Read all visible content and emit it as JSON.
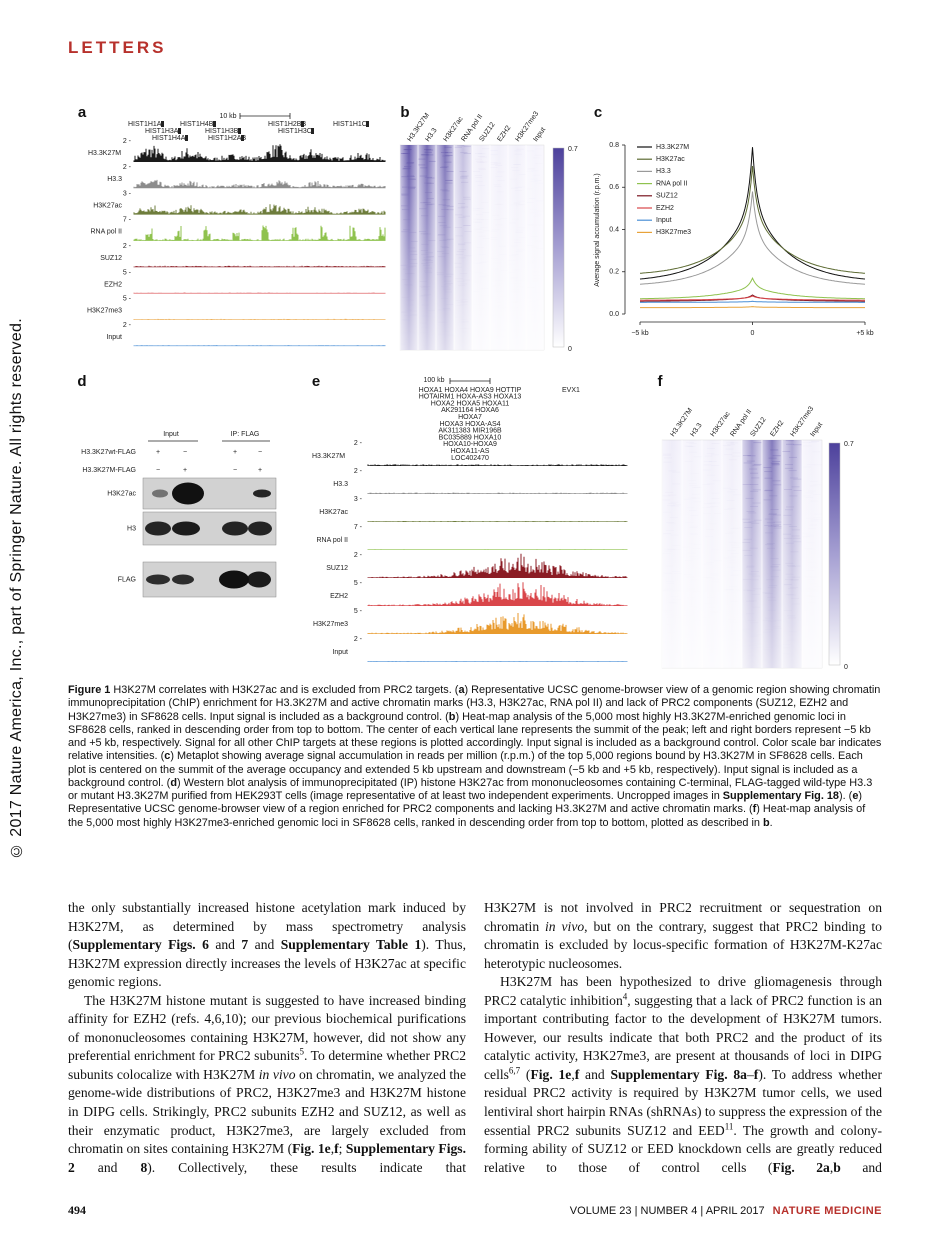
{
  "header": {
    "section": "LETTERS"
  },
  "sidebar": "© 2017 Nature America, Inc., part of Springer Nature. All rights reserved.",
  "figure": {
    "a": {
      "label": "a",
      "scale_bar": "10 kb",
      "genes": [
        "HIST1H1A",
        "HIST1H3A",
        "HIST1H4A",
        "HIST1H4B",
        "HIST1H3B",
        "HIST1H2AB",
        "HIST1H2BB",
        "HIST1H3C",
        "HIST1H1C"
      ],
      "tracks": [
        {
          "name": "H3.3K27M",
          "scale": "2 -",
          "color": "#1a1a1a"
        },
        {
          "name": "H3.3",
          "scale": "2 -",
          "color": "#8c8c8c"
        },
        {
          "name": "H3K27ac",
          "scale": "3 -",
          "color": "#6e7d3c"
        },
        {
          "name": "RNA pol II",
          "scale": "7 -",
          "color": "#8fc24e"
        },
        {
          "name": "SUZ12",
          "scale": "2 -",
          "color": "#8b1c24"
        },
        {
          "name": "EZH2",
          "scale": "5 -",
          "color": "#d9464a"
        },
        {
          "name": "H3K27me3",
          "scale": "5 -",
          "color": "#e89a2c"
        },
        {
          "name": "Input",
          "scale": "2 -",
          "color": "#4b8fd6"
        }
      ]
    },
    "b": {
      "label": "b",
      "columns": [
        "H3.3K27M",
        "H3.3",
        "H3K27ac",
        "RNA pol II",
        "SUZ12",
        "EZH2",
        "H3K27me3",
        "Input"
      ],
      "color": "#5a4ea6",
      "scale_max": "0.7",
      "scale_min": "0"
    },
    "c": {
      "label": "c",
      "y_label": "Average signal accumulation (r.p.m.)",
      "yticks": [
        "0.0",
        "0.2",
        "0.4",
        "0.6",
        "0.8"
      ],
      "xticks": [
        "−5 kb",
        "0",
        "+5 kb"
      ],
      "series": [
        {
          "name": "H3.3K27M",
          "color": "#111111"
        },
        {
          "name": "H3K27ac",
          "color": "#5d6b33"
        },
        {
          "name": "H3.3",
          "color": "#9a9a9a"
        },
        {
          "name": "RNA pol II",
          "color": "#8fc24e"
        },
        {
          "name": "SUZ12",
          "color": "#7a1420"
        },
        {
          "name": "EZH2",
          "color": "#d9464a"
        },
        {
          "name": "Input",
          "color": "#4b8fd6"
        },
        {
          "name": "H3K27me3",
          "color": "#e8a33a"
        }
      ]
    },
    "d": {
      "label": "d",
      "groups": [
        "Input",
        "IP: FLAG"
      ],
      "rows": [
        {
          "name": "H3.3K27wt-FLAG",
          "signs": [
            "+",
            "−",
            "+",
            "−"
          ]
        },
        {
          "name": "H3.3K27M-FLAG",
          "signs": [
            "−",
            "+",
            "−",
            "+"
          ]
        }
      ],
      "blots": [
        "H3K27ac",
        "H3",
        "FLAG"
      ]
    },
    "e": {
      "label": "e",
      "scale_bar": "100 kb",
      "genes": [
        "HOXA1  HOXA4  HOXA9  HOTTIP",
        "HOTAIRM1  HOXA-AS3  HOXA13",
        "HOXA2  HOXA5  HOXA11",
        "AK291164  HOXA6",
        "HOXA7",
        "HOXA3  HOXA-AS4",
        "AK311383  MIR196B",
        "BC035889  HOXA10",
        "HOXA10-HOXA9",
        "HOXA11-AS",
        "LOC402470"
      ],
      "gene_far": "EVX1",
      "tracks": [
        {
          "name": "H3.3K27M",
          "scale": "2 -",
          "color": "#1a1a1a"
        },
        {
          "name": "H3.3",
          "scale": "2 -",
          "color": "#8c8c8c"
        },
        {
          "name": "H3K27ac",
          "scale": "3 -",
          "color": "#6e7d3c"
        },
        {
          "name": "RNA pol II",
          "scale": "7 -",
          "color": "#8fc24e"
        },
        {
          "name": "SUZ12",
          "scale": "2 -",
          "color": "#8b1c24"
        },
        {
          "name": "EZH2",
          "scale": "5 -",
          "color": "#d9464a"
        },
        {
          "name": "H3K27me3",
          "scale": "5 -",
          "color": "#e89a2c"
        },
        {
          "name": "Input",
          "scale": "2 -",
          "color": "#4b8fd6"
        }
      ]
    },
    "f": {
      "label": "f",
      "columns": [
        "H3.3K27M",
        "H3.3",
        "H3K27ac",
        "RNA pol II",
        "SUZ12",
        "EZH2",
        "H3K27me3",
        "Input"
      ],
      "color": "#5a4ea6",
      "scale_max": "0.7",
      "scale_min": "0"
    },
    "caption": [
      {
        "text": "Figure 1",
        "style": "bold"
      },
      {
        "text": " H3K27M correlates with H3K27ac and is excluded from PRC2 targets. ("
      },
      {
        "text": "a",
        "style": "bold"
      },
      {
        "text": ") Representative UCSC genome-browser view of a genomic region showing chromatin immunoprecipitation (ChIP) enrichment for H3.3K27M and active chromatin marks (H3.3, H3K27ac, RNA pol II) and lack of PRC2 components (SUZ12, EZH2 and H3K27me3) in SF8628 cells. Input signal is included as a background control. ("
      },
      {
        "text": "b",
        "style": "bold"
      },
      {
        "text": ") Heat-map analysis of the 5,000 most highly H3.3K27M-enriched genomic loci in SF8628 cells, ranked in descending order from top to bottom. The center of each vertical lane represents the summit of the peak; left and right borders represent −5 kb and +5 kb, respectively. Signal for all other ChIP targets at these regions is plotted accordingly. Input signal is included as a background control. Color scale bar indicates relative intensities. ("
      },
      {
        "text": "c",
        "style": "bold"
      },
      {
        "text": ") Metaplot showing average signal accumulation in reads per million (r.p.m.) of the top 5,000 regions bound by H3.3K27M in SF8628 cells. Each plot is centered on the summit of the average occupancy and extended 5 kb upstream and downstream (−5 kb and +5 kb, respectively). Input signal is included as a background control. ("
      },
      {
        "text": "d",
        "style": "bold"
      },
      {
        "text": ") Western blot analysis of immunoprecipitated (IP) histone H3K27ac from mononucleosomes containing C-terminal, FLAG-tagged wild-type H3.3 or mutant H3.3K27M purified from HEK293T cells (image representative of at least two independent experiments. Uncropped images in "
      },
      {
        "text": "Supplementary Fig. 18",
        "style": "bold"
      },
      {
        "text": "). ("
      },
      {
        "text": "e",
        "style": "bold"
      },
      {
        "text": ") Representative UCSC genome-browser view of a region enriched for PRC2 components and lacking H3.3K27M and active chromatin marks. ("
      },
      {
        "text": "f",
        "style": "bold"
      },
      {
        "text": ") Heat-map analysis of the 5,000 most highly H3K27me3-enriched genomic loci in SF8628 cells, ranked in descending order from top to bottom, plotted as described in "
      },
      {
        "text": "b",
        "style": "bold"
      },
      {
        "text": "."
      }
    ]
  },
  "body": {
    "left": [
      [
        {
          "text": "the only substantially increased histone acetylation mark induced by H3K27M, as determined by mass spectrometry analysis ("
        },
        {
          "text": "Supplementary Figs. 6",
          "style": "bold"
        },
        {
          "text": " and "
        },
        {
          "text": "7",
          "style": "bold"
        },
        {
          "text": " and "
        },
        {
          "text": "Supplementary Table 1",
          "style": "bold"
        },
        {
          "text": "). Thus, H3K27M expression directly increases the levels of H3K27ac at specific genomic regions."
        }
      ],
      [
        {
          "text": "The H3K27M histone mutant is suggested to have increased binding affinity for EZH2 (refs. 4,6,10); our previous biochemical purifications of mononucleosomes containing H3K27M, however, did not show any preferential enrichment for PRC2 subunits"
        },
        {
          "text": "5",
          "style": "sup"
        },
        {
          "text": ". To determine whether PRC2 subunits colocalize with H3K27M "
        },
        {
          "text": "in vivo",
          "style": "italic"
        },
        {
          "text": " on chromatin, we analyzed the genome-wide distributions of PRC2, H3K27me3 and H3K27M histone in DIPG cells. Strikingly, PRC2 subunits EZH2 and SUZ12, as well as their enzymatic product, H3K27me3, are largely excluded from chromatin on sites containing H3K27M ("
        },
        {
          "text": "Fig. 1e",
          "style": "bold"
        },
        {
          "text": ","
        },
        {
          "text": "f",
          "style": "bold"
        },
        {
          "text": "; "
        },
        {
          "text": "Supplementary Figs. 2",
          "style": "bold"
        },
        {
          "text": " and "
        },
        {
          "text": "8",
          "style": "bold"
        },
        {
          "text": "). Collectively, these results indicate that"
        }
      ]
    ],
    "right": [
      [
        {
          "text": "H3K27M is not involved in PRC2 recruitment or sequestration on chromatin "
        },
        {
          "text": "in vivo",
          "style": "italic"
        },
        {
          "text": ", but on the contrary, suggest that PRC2 binding to chromatin is excluded by locus-specific formation of H3K27M-K27ac heterotypic nucleosomes."
        }
      ],
      [
        {
          "text": "H3K27M has been hypothesized to drive gliomagenesis through PRC2 catalytic inhibition"
        },
        {
          "text": "4",
          "style": "sup"
        },
        {
          "text": ", suggesting that a lack of PRC2 function is an important contributing factor to the development of H3K27M tumors. However, our results indicate that both PRC2 and the product of its catalytic activity, H3K27me3, are present at thousands of loci in DIPG cells"
        },
        {
          "text": "6,7",
          "style": "sup"
        },
        {
          "text": " ("
        },
        {
          "text": "Fig. 1e",
          "style": "bold"
        },
        {
          "text": ","
        },
        {
          "text": "f",
          "style": "bold"
        },
        {
          "text": " and "
        },
        {
          "text": "Supplementary Fig. 8a",
          "style": "bold"
        },
        {
          "text": "–"
        },
        {
          "text": "f",
          "style": "bold"
        },
        {
          "text": "). To address whether residual PRC2 activity is required by H3K27M tumor cells, we used lentiviral short hairpin RNAs (shRNAs) to suppress the expression of the essential PRC2 subunits SUZ12 and EED"
        },
        {
          "text": "11",
          "style": "sup"
        },
        {
          "text": ". The growth and colony-forming ability of SUZ12 or EED knockdown cells are greatly reduced relative to those of control cells ("
        },
        {
          "text": "Fig. 2a",
          "style": "bold"
        },
        {
          "text": ","
        },
        {
          "text": "b",
          "style": "bold"
        },
        {
          "text": " and"
        }
      ]
    ]
  },
  "footer": {
    "page": "494",
    "issue": "VOLUME 23 | NUMBER 4 | APRIL 2017",
    "journal": "NATURE MEDICINE"
  }
}
